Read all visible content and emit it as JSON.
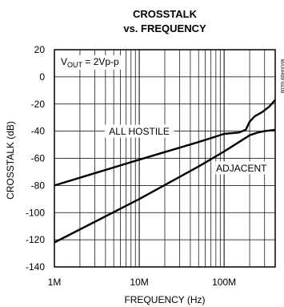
{
  "chart_data": {
    "type": "line",
    "title": "CROSSTALK",
    "subtitle": "vs. FREQUENCY",
    "xlabel": "FREQUENCY (Hz)",
    "ylabel": "CROSSTALK (dB)",
    "xscale": "log",
    "xlim": [
      1000000,
      400000000
    ],
    "ylim": [
      -140,
      20
    ],
    "grid": true,
    "x_ticks": [
      {
        "value": 1000000,
        "label": "1M"
      },
      {
        "value": 10000000,
        "label": "10M"
      },
      {
        "value": 100000000,
        "label": "100M"
      }
    ],
    "y_ticks": [
      20,
      0,
      -20,
      -40,
      -60,
      -80,
      -100,
      -120,
      -140
    ],
    "y_tick_labels": [
      "20",
      "0",
      "-20",
      "-40",
      "-60",
      "-80",
      "-100",
      "-120",
      "-140"
    ],
    "annotation_vout": {
      "main": "V",
      "sub": "OUT",
      "rest": " = 2Vp-p"
    },
    "side_label": "MAX4499 toc08",
    "series": [
      {
        "name": "ALL HOSTILE",
        "points": [
          [
            1000000,
            -80
          ],
          [
            10000000,
            -61
          ],
          [
            50000000,
            -48
          ],
          [
            100000000,
            -42
          ],
          [
            150000000,
            -41
          ],
          [
            180000000,
            -39
          ],
          [
            200000000,
            -33
          ],
          [
            230000000,
            -29
          ],
          [
            280000000,
            -26
          ],
          [
            340000000,
            -22
          ],
          [
            400000000,
            -17
          ]
        ]
      },
      {
        "name": "ADJACENT",
        "points": [
          [
            1000000,
            -122
          ],
          [
            10000000,
            -90
          ],
          [
            50000000,
            -66
          ],
          [
            100000000,
            -55
          ],
          [
            150000000,
            -48
          ],
          [
            200000000,
            -43
          ],
          [
            250000000,
            -41
          ],
          [
            300000000,
            -40
          ],
          [
            400000000,
            -39
          ]
        ]
      }
    ],
    "series_labels": [
      {
        "series": 0,
        "text": "ALL HOSTILE",
        "at": [
          10000000,
          -40
        ]
      },
      {
        "series": 1,
        "text": "ADJACENT",
        "at": [
          160000000,
          -67
        ]
      }
    ]
  }
}
